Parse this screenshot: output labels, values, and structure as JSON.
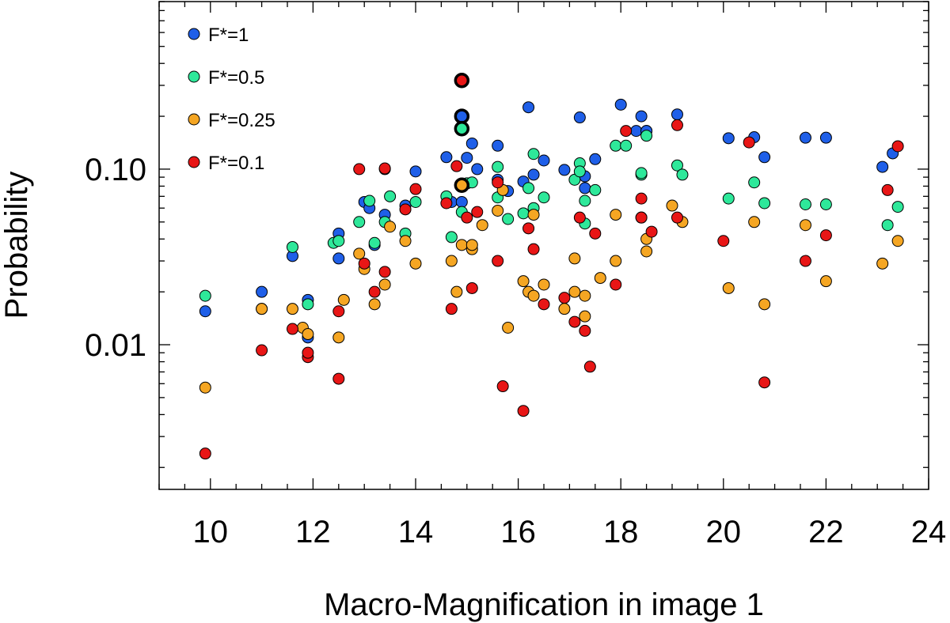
{
  "chart_data": {
    "type": "scatter",
    "xlabel": "Macro-Magnification in image 1",
    "ylabel": "Probability",
    "xlim": [
      9,
      24
    ],
    "ylim": [
      0.0015,
      0.9
    ],
    "yscale": "log",
    "x_ticks": [
      10,
      12,
      14,
      16,
      18,
      20,
      22,
      24
    ],
    "y_ticks": [
      0.01,
      0.1
    ],
    "y_tick_labels": [
      "0.01",
      "0.10"
    ],
    "legend_position": "top-left",
    "series": [
      {
        "name": "F*=1",
        "color": "#1f5fe8",
        "points": [
          [
            9.9,
            0.0155
          ],
          [
            11,
            0.02
          ],
          [
            11.6,
            0.032
          ],
          [
            11.9,
            0.018
          ],
          [
            11.9,
            0.011
          ],
          [
            12.5,
            0.031
          ],
          [
            12.5,
            0.043
          ],
          [
            13,
            0.065
          ],
          [
            13.1,
            0.06
          ],
          [
            13.2,
            0.037
          ],
          [
            13.4,
            0.055
          ],
          [
            13.4,
            0.1
          ],
          [
            13.8,
            0.062
          ],
          [
            14,
            0.097
          ],
          [
            14.6,
            0.117
          ],
          [
            14.7,
            0.065
          ],
          [
            14.9,
            0.065
          ],
          [
            15,
            0.116
          ],
          [
            15.1,
            0.14
          ],
          [
            15.2,
            0.1
          ],
          [
            15.6,
            0.087
          ],
          [
            15.6,
            0.136
          ],
          [
            15.8,
            0.075
          ],
          [
            16.1,
            0.085
          ],
          [
            16.2,
            0.225
          ],
          [
            16.3,
            0.093
          ],
          [
            16.5,
            0.112
          ],
          [
            16.9,
            0.099
          ],
          [
            17.2,
            0.197
          ],
          [
            17.3,
            0.091
          ],
          [
            17.3,
            0.078
          ],
          [
            17.5,
            0.114
          ],
          [
            18,
            0.233
          ],
          [
            18.3,
            0.165
          ],
          [
            18.4,
            0.2
          ],
          [
            18.5,
            0.165
          ],
          [
            18.5,
            0.165
          ],
          [
            19.1,
            0.205
          ],
          [
            20.1,
            0.15
          ],
          [
            20.6,
            0.152
          ],
          [
            20.8,
            0.117
          ],
          [
            21.6,
            0.151
          ],
          [
            22,
            0.151
          ],
          [
            23.1,
            0.103
          ],
          [
            23.3,
            0.123
          ]
        ]
      },
      {
        "name": "F*=0.5",
        "color": "#2ee89a",
        "points": [
          [
            9.9,
            0.019
          ],
          [
            11,
            0.016
          ],
          [
            11.6,
            0.036
          ],
          [
            11.9,
            0.017
          ],
          [
            12.4,
            0.038
          ],
          [
            12.5,
            0.039
          ],
          [
            12.9,
            0.05
          ],
          [
            13.1,
            0.066
          ],
          [
            13.2,
            0.038
          ],
          [
            13.4,
            0.05
          ],
          [
            13.5,
            0.07
          ],
          [
            13.8,
            0.043
          ],
          [
            14,
            0.065
          ],
          [
            14.6,
            0.07
          ],
          [
            14.7,
            0.041
          ],
          [
            14.9,
            0.057
          ],
          [
            15,
            0.083
          ],
          [
            15.1,
            0.084
          ],
          [
            15.6,
            0.103
          ],
          [
            15.6,
            0.069
          ],
          [
            15.8,
            0.052
          ],
          [
            16.1,
            0.056
          ],
          [
            16.2,
            0.078
          ],
          [
            16.3,
            0.122
          ],
          [
            16.3,
            0.06
          ],
          [
            16.5,
            0.069
          ],
          [
            17.1,
            0.087
          ],
          [
            17.2,
            0.108
          ],
          [
            17.2,
            0.097
          ],
          [
            17.3,
            0.049
          ],
          [
            17.3,
            0.066
          ],
          [
            17.5,
            0.076
          ],
          [
            17.9,
            0.136
          ],
          [
            18.1,
            0.136
          ],
          [
            18.4,
            0.093
          ],
          [
            18.4,
            0.095
          ],
          [
            18.5,
            0.155
          ],
          [
            19.1,
            0.105
          ],
          [
            19.2,
            0.093
          ],
          [
            20.1,
            0.068
          ],
          [
            20.6,
            0.084
          ],
          [
            20.8,
            0.064
          ],
          [
            21.6,
            0.063
          ],
          [
            22,
            0.063
          ],
          [
            23.2,
            0.048
          ],
          [
            23.4,
            0.061
          ]
        ]
      },
      {
        "name": "F*=0.25",
        "color": "#f5a623",
        "points": [
          [
            9.9,
            0.0057
          ],
          [
            11,
            0.016
          ],
          [
            11.6,
            0.016
          ],
          [
            11.8,
            0.0125
          ],
          [
            11.9,
            0.0115
          ],
          [
            12.5,
            0.011
          ],
          [
            12.6,
            0.018
          ],
          [
            12.9,
            0.033
          ],
          [
            13,
            0.027
          ],
          [
            13.2,
            0.017
          ],
          [
            13.4,
            0.022
          ],
          [
            13.5,
            0.047
          ],
          [
            13.8,
            0.039
          ],
          [
            14,
            0.029
          ],
          [
            14.7,
            0.03
          ],
          [
            14.8,
            0.02
          ],
          [
            14.9,
            0.037
          ],
          [
            15.1,
            0.035
          ],
          [
            15.1,
            0.037
          ],
          [
            15.3,
            0.048
          ],
          [
            15.6,
            0.058
          ],
          [
            15.7,
            0.076
          ],
          [
            15.8,
            0.0125
          ],
          [
            16.1,
            0.023
          ],
          [
            16.2,
            0.02
          ],
          [
            16.3,
            0.019
          ],
          [
            16.3,
            0.055
          ],
          [
            16.5,
            0.022
          ],
          [
            16.9,
            0.016
          ],
          [
            17.1,
            0.031
          ],
          [
            17.1,
            0.02
          ],
          [
            17.3,
            0.019
          ],
          [
            17.3,
            0.0145
          ],
          [
            17.6,
            0.024
          ],
          [
            17.9,
            0.03
          ],
          [
            17.9,
            0.055
          ],
          [
            18.4,
            0.053
          ],
          [
            18.5,
            0.04
          ],
          [
            18.5,
            0.034
          ],
          [
            19,
            0.062
          ],
          [
            19.2,
            0.05
          ],
          [
            20.1,
            0.021
          ],
          [
            20.6,
            0.05
          ],
          [
            20.8,
            0.017
          ],
          [
            21.6,
            0.048
          ],
          [
            22,
            0.023
          ],
          [
            23.1,
            0.029
          ],
          [
            23.4,
            0.039
          ]
        ]
      },
      {
        "name": "F*=0.1",
        "color": "#e81616",
        "points": [
          [
            9.9,
            0.0024
          ],
          [
            11,
            0.0093
          ],
          [
            11.6,
            0.0123
          ],
          [
            11.9,
            0.0085
          ],
          [
            11.9,
            0.009
          ],
          [
            12.5,
            0.0064
          ],
          [
            12.5,
            0.0155
          ],
          [
            12.9,
            0.1
          ],
          [
            13,
            0.029
          ],
          [
            13.2,
            0.02
          ],
          [
            13.4,
            0.026
          ],
          [
            13.4,
            0.101
          ],
          [
            13.8,
            0.059
          ],
          [
            14,
            0.077
          ],
          [
            14.6,
            0.064
          ],
          [
            14.7,
            0.016
          ],
          [
            14.8,
            0.104
          ],
          [
            15,
            0.053
          ],
          [
            15.1,
            0.021
          ],
          [
            15.2,
            0.057
          ],
          [
            15.6,
            0.084
          ],
          [
            15.6,
            0.03
          ],
          [
            15.7,
            0.0058
          ],
          [
            16.1,
            0.0042
          ],
          [
            16.2,
            0.046
          ],
          [
            16.3,
            0.035
          ],
          [
            16.5,
            0.017
          ],
          [
            16.9,
            0.0185
          ],
          [
            17.1,
            0.0135
          ],
          [
            17.2,
            0.053
          ],
          [
            17.3,
            0.012
          ],
          [
            17.4,
            0.0075
          ],
          [
            17.5,
            0.043
          ],
          [
            17.9,
            0.022
          ],
          [
            18.1,
            0.165
          ],
          [
            18.4,
            0.068
          ],
          [
            18.4,
            0.053
          ],
          [
            18.6,
            0.044
          ],
          [
            19.1,
            0.178
          ],
          [
            19.1,
            0.053
          ],
          [
            20,
            0.039
          ],
          [
            20.5,
            0.142
          ],
          [
            20.8,
            0.0061
          ],
          [
            21.6,
            0.03
          ],
          [
            22,
            0.042
          ],
          [
            23.2,
            0.076
          ],
          [
            23.4,
            0.135
          ]
        ]
      }
    ],
    "highlighted": [
      {
        "x": 14.9,
        "y": 0.32,
        "color": "#e81616"
      },
      {
        "x": 14.9,
        "y": 0.2,
        "color": "#1f5fe8"
      },
      {
        "x": 14.9,
        "y": 0.17,
        "color": "#2ee89a"
      },
      {
        "x": 14.9,
        "y": 0.081,
        "color": "#f5a623"
      }
    ]
  }
}
